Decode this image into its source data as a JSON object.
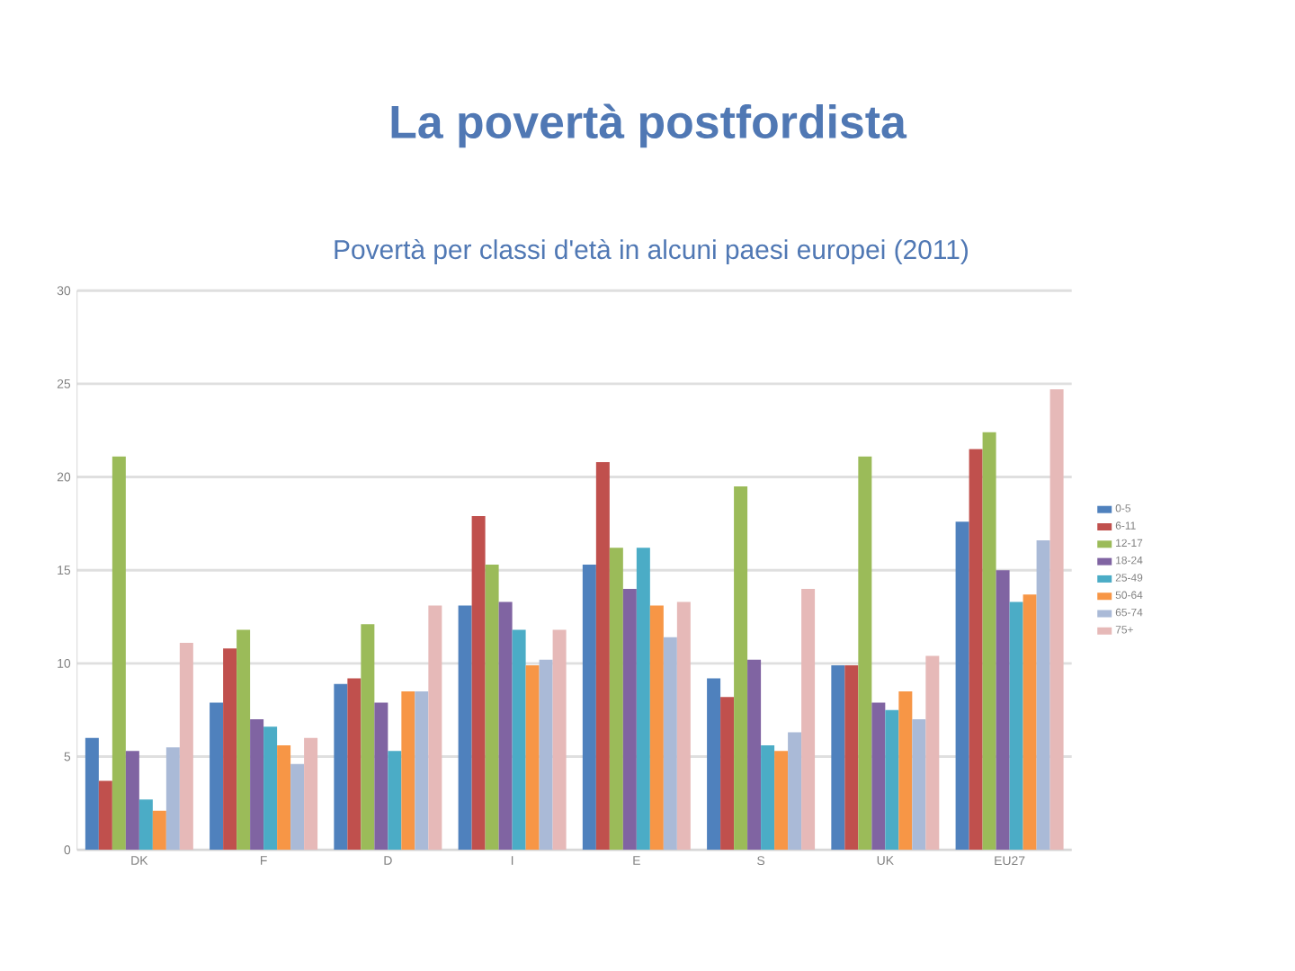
{
  "chart_data": {
    "type": "bar",
    "title": "La povertà postfordista",
    "subtitle": "Povertà per classi d'età in alcuni paesi europei (2011)",
    "categories": [
      "DK",
      "F",
      "D",
      "I",
      "E",
      "S",
      "UK",
      "EU27"
    ],
    "series": [
      {
        "name": "0-5",
        "color": "#4f81bd",
        "values": [
          6.0,
          7.9,
          8.9,
          13.1,
          15.3,
          9.2,
          9.9,
          17.6
        ]
      },
      {
        "name": "6-11",
        "color": "#c0504d",
        "values": [
          3.7,
          10.8,
          9.2,
          17.9,
          20.8,
          8.2,
          9.9,
          21.5
        ]
      },
      {
        "name": "12-17",
        "color": "#9bbb59",
        "values": [
          21.1,
          11.8,
          12.1,
          15.3,
          16.2,
          19.5,
          21.1,
          22.4
        ]
      },
      {
        "name": "18-24",
        "color": "#8064a2",
        "values": [
          5.3,
          7.0,
          7.9,
          13.3,
          14.0,
          10.2,
          7.9,
          15.0
        ]
      },
      {
        "name": "25-49",
        "color": "#4bacc6",
        "values": [
          2.7,
          6.6,
          5.3,
          11.8,
          16.2,
          5.6,
          7.5,
          13.3
        ]
      },
      {
        "name": "50-64",
        "color": "#f79646",
        "values": [
          2.1,
          5.6,
          8.5,
          9.9,
          13.1,
          5.3,
          8.5,
          13.7
        ]
      },
      {
        "name": "65-74",
        "color": "#aabad7",
        "values": [
          5.5,
          4.6,
          8.5,
          10.2,
          11.4,
          6.3,
          7.0,
          16.6
        ]
      },
      {
        "name": "75+",
        "color": "#e6b9b8",
        "values": [
          11.1,
          6.0,
          13.1,
          11.8,
          13.3,
          14.0,
          10.4,
          24.7
        ]
      }
    ],
    "ylim": [
      0,
      30
    ],
    "yticks": [
      0,
      5,
      10,
      15,
      20,
      25,
      30
    ],
    "grid": "y",
    "legend": "right"
  }
}
